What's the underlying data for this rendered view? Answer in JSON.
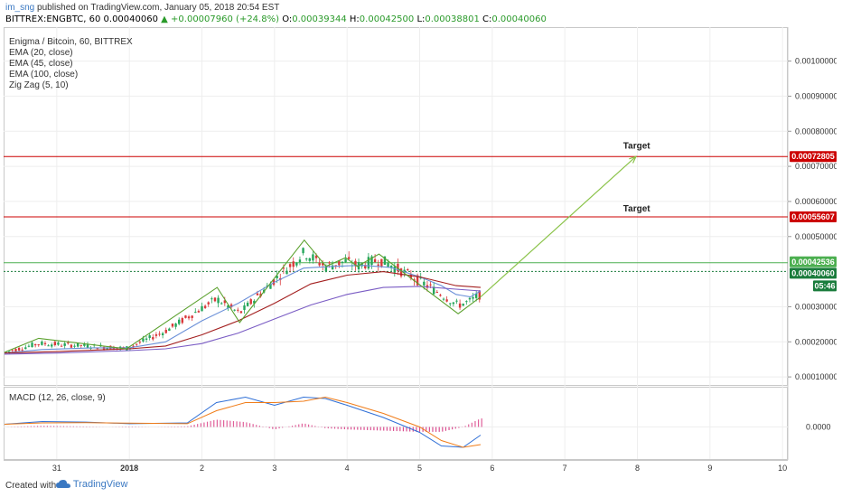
{
  "header": {
    "user": "im_sng",
    "published_text": "published on TradingView.com, January 05, 2018 20:54 EST",
    "symbol_line": "BITTREX:ENGBTC, 60",
    "last": "0.00040060",
    "change": "▲ +0.00007960 (+24.8%)",
    "o_label": "O:",
    "o_val": "0.00039344",
    "h_label": "H:",
    "h_val": "0.00042500",
    "l_label": "L:",
    "l_val": "0.00038801",
    "c_label": "C:",
    "c_val": "0.00040060"
  },
  "legend": {
    "title": "Enigma / Bitcoin, 60, BITTREX",
    "items": [
      "EMA (20, close)",
      "EMA (45, close)",
      "EMA (100, close)",
      "Zig Zag (5, 10)"
    ]
  },
  "macd_label": "MACD (12, 26, close, 9)",
  "footer": {
    "created": "Created with",
    "brand": "TradingView"
  },
  "chart_data": {
    "type": "line",
    "title": "Enigma / Bitcoin, 60, BITTREX",
    "x_ticks": [
      "31",
      "2018",
      "2",
      "3",
      "4",
      "5",
      "6",
      "7",
      "8",
      "9",
      "10"
    ],
    "x_tick_days": [
      -1,
      0,
      1,
      2,
      3,
      4,
      5,
      6,
      7,
      8,
      9
    ],
    "y_ticks": [
      "0.00100000",
      "0.00090000",
      "0.00080000",
      "0.00070000",
      "0.00060000",
      "0.00050000",
      "0.00030000",
      "0.00020000",
      "0.00010000"
    ],
    "ylim": [
      8.74e-05,
      0.0010865
    ],
    "xlim": [
      -1.72,
      9.06
    ],
    "macd_ticks": [
      "0.0000"
    ],
    "price_labels": [
      {
        "value": "0.00072805",
        "color": "#cc0000"
      },
      {
        "value": "0.00055607",
        "color": "#cc0000"
      },
      {
        "value": "0.00042536",
        "color": "#4caf50"
      },
      {
        "value": "0.00040060",
        "color": "#1a7c3c"
      },
      {
        "value": "05:46",
        "color": "#1a7c3c"
      }
    ],
    "horizontal_lines": [
      {
        "price": 0.00072805,
        "color": "#cc0000"
      },
      {
        "price": 0.00055607,
        "color": "#cc0000"
      },
      {
        "price": 0.00042536,
        "color": "#4caf50"
      },
      {
        "price": 0.0004006,
        "color": "#1a7c3c",
        "dotted": true
      }
    ],
    "annotations": [
      {
        "text": "Target",
        "x": 6.99,
        "y": 0.00075
      },
      {
        "text": "Target",
        "x": 6.99,
        "y": 0.000572
      }
    ],
    "projection": [
      {
        "x": 4.84,
        "y": 0.000328
      },
      {
        "x": 6.98,
        "y": 0.000728
      }
    ],
    "zigzag": [
      {
        "x": -1.72,
        "y": 0.00017
      },
      {
        "x": -1.25,
        "y": 0.00021
      },
      {
        "x": -0.04,
        "y": 0.00018
      },
      {
        "x": 1.21,
        "y": 0.000355
      },
      {
        "x": 1.52,
        "y": 0.000255
      },
      {
        "x": 2.41,
        "y": 0.00049
      },
      {
        "x": 2.71,
        "y": 0.000415
      },
      {
        "x": 2.98,
        "y": 0.00044
      },
      {
        "x": 3.14,
        "y": 0.000415
      },
      {
        "x": 3.44,
        "y": 0.00045
      },
      {
        "x": 4.53,
        "y": 0.00028
      },
      {
        "x": 4.84,
        "y": 0.000328
      }
    ],
    "series": [
      {
        "role": "ema20",
        "color": "#6a8fd8",
        "points": [
          [
            -1.72,
            0.000168
          ],
          [
            -1.2,
            0.000178
          ],
          [
            -0.5,
            0.000183
          ],
          [
            0,
            0.000183
          ],
          [
            0.5,
            0.0002
          ],
          [
            1.0,
            0.00026
          ],
          [
            1.5,
            0.00031
          ],
          [
            2.0,
            0.00037
          ],
          [
            2.4,
            0.00041
          ],
          [
            2.8,
            0.000415
          ],
          [
            3.2,
            0.000418
          ],
          [
            3.6,
            0.000412
          ],
          [
            4.0,
            0.000385
          ],
          [
            4.3,
            0.00036
          ],
          [
            4.5,
            0.000335
          ],
          [
            4.7,
            0.000328
          ],
          [
            4.84,
            0.000345
          ]
        ]
      },
      {
        "role": "ema45",
        "color": "#a31f1f",
        "points": [
          [
            -1.72,
            0.000168
          ],
          [
            -1,
            0.000172
          ],
          [
            0,
            0.00018
          ],
          [
            0.5,
            0.000188
          ],
          [
            1.0,
            0.00022
          ],
          [
            1.5,
            0.00026
          ],
          [
            2.0,
            0.00031
          ],
          [
            2.5,
            0.000365
          ],
          [
            3.0,
            0.00039
          ],
          [
            3.5,
            0.0004
          ],
          [
            4.0,
            0.000385
          ],
          [
            4.5,
            0.00036
          ],
          [
            4.84,
            0.000355
          ]
        ]
      },
      {
        "role": "ema100",
        "color": "#7a5cc4",
        "points": [
          [
            -1.72,
            0.000165
          ],
          [
            -1,
            0.000168
          ],
          [
            0,
            0.000175
          ],
          [
            0.5,
            0.00018
          ],
          [
            1.0,
            0.000195
          ],
          [
            1.5,
            0.000225
          ],
          [
            2.0,
            0.000265
          ],
          [
            2.5,
            0.000305
          ],
          [
            3.0,
            0.000335
          ],
          [
            3.5,
            0.000355
          ],
          [
            4.0,
            0.000358
          ],
          [
            4.5,
            0.00035
          ],
          [
            4.84,
            0.000345
          ]
        ]
      }
    ],
    "macd_series": [
      {
        "role": "macd",
        "color": "#2f6fd6",
        "points": [
          [
            -1.72,
            0.1
          ],
          [
            -1.2,
            0.2
          ],
          [
            -0.6,
            0.18
          ],
          [
            0,
            0.12
          ],
          [
            0.8,
            0.15
          ],
          [
            1.2,
            0.9
          ],
          [
            1.6,
            1.1
          ],
          [
            2.0,
            0.8
          ],
          [
            2.4,
            1.1
          ],
          [
            2.7,
            1.05
          ],
          [
            3.0,
            0.8
          ],
          [
            3.5,
            0.35
          ],
          [
            4.0,
            -0.2
          ],
          [
            4.3,
            -0.7
          ],
          [
            4.6,
            -0.75
          ],
          [
            4.84,
            -0.3
          ]
        ]
      },
      {
        "role": "signal",
        "color": "#f07d1a",
        "points": [
          [
            -1.72,
            0.1
          ],
          [
            -1.2,
            0.15
          ],
          [
            -0.6,
            0.16
          ],
          [
            0,
            0.14
          ],
          [
            0.8,
            0.12
          ],
          [
            1.2,
            0.6
          ],
          [
            1.6,
            0.9
          ],
          [
            2.0,
            0.9
          ],
          [
            2.4,
            0.95
          ],
          [
            2.7,
            1.1
          ],
          [
            3.0,
            0.9
          ],
          [
            3.5,
            0.5
          ],
          [
            4.0,
            0.0
          ],
          [
            4.3,
            -0.5
          ],
          [
            4.6,
            -0.75
          ],
          [
            4.84,
            -0.65
          ]
        ]
      }
    ]
  }
}
